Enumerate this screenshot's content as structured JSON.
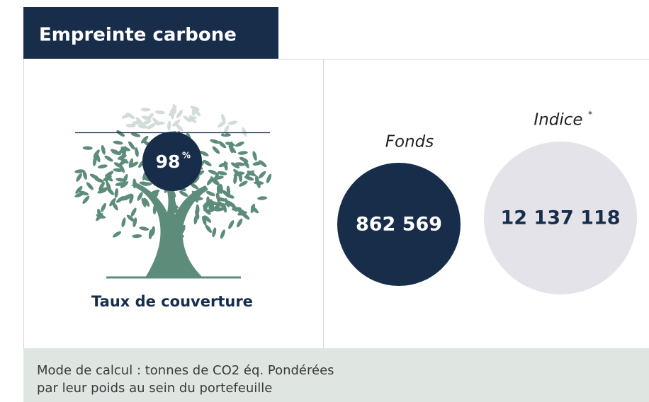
{
  "header": {
    "title": "Empreinte carbone"
  },
  "coverage": {
    "value": "98",
    "unit": "%",
    "label": "Taux de couverture"
  },
  "fund": {
    "label": "Fonds",
    "value": "862 569"
  },
  "index": {
    "label": "Indice",
    "note_mark": "*",
    "value": "12 137 118"
  },
  "footer": {
    "lines": [
      "Mode de calcul : tonnes de CO2 éq. Pondérées",
      "par leur poids au sein du portefeuille"
    ]
  }
}
